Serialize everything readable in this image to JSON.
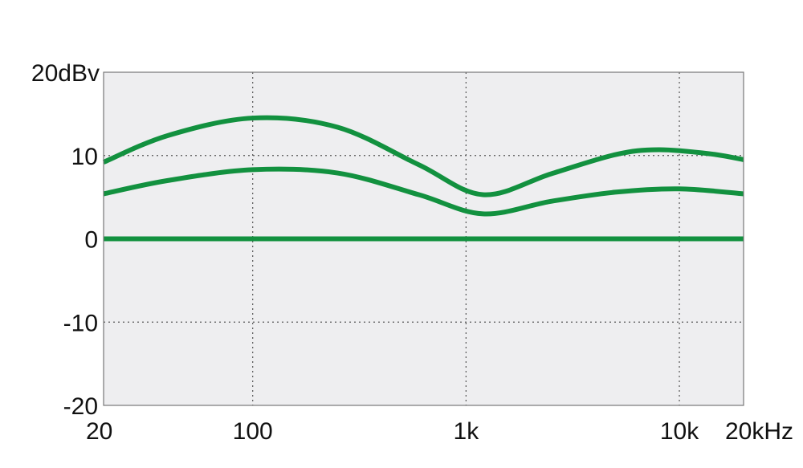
{
  "chart_data": {
    "type": "line",
    "title": "",
    "xlabel": "",
    "ylabel": "",
    "x_scale": "log",
    "xlim": [
      20,
      20000
    ],
    "ylim": [
      -20,
      20
    ],
    "x_ticks": [
      {
        "value": 20,
        "label": "20"
      },
      {
        "value": 100,
        "label": "100"
      },
      {
        "value": 1000,
        "label": "1k"
      },
      {
        "value": 10000,
        "label": "10k"
      },
      {
        "value": 20000,
        "label": "20kHz"
      }
    ],
    "y_ticks": [
      {
        "value": 20,
        "label": "20dBv"
      },
      {
        "value": 10,
        "label": "10"
      },
      {
        "value": 0,
        "label": "0"
      },
      {
        "value": -10,
        "label": "-10"
      },
      {
        "value": -20,
        "label": "-20"
      }
    ],
    "grid": true,
    "grid_style": "dotted",
    "plot_background": "#eeeef0",
    "series_color": "#12913f",
    "series": [
      {
        "x": [
          20,
          40,
          100,
          250,
          600,
          1200,
          2500,
          5000,
          8000,
          14000,
          20000
        ],
        "values": [
          9.2,
          12.4,
          14.5,
          13.4,
          8.9,
          5.3,
          7.8,
          10.1,
          10.7,
          10.2,
          9.5
        ]
      },
      {
        "x": [
          20,
          40,
          100,
          250,
          600,
          1200,
          2500,
          5000,
          10000,
          20000
        ],
        "values": [
          5.4,
          7.0,
          8.3,
          7.9,
          5.3,
          3.0,
          4.5,
          5.6,
          6.0,
          5.4
        ]
      },
      {
        "x": [
          20,
          20000
        ],
        "values": [
          0,
          0
        ]
      }
    ]
  }
}
